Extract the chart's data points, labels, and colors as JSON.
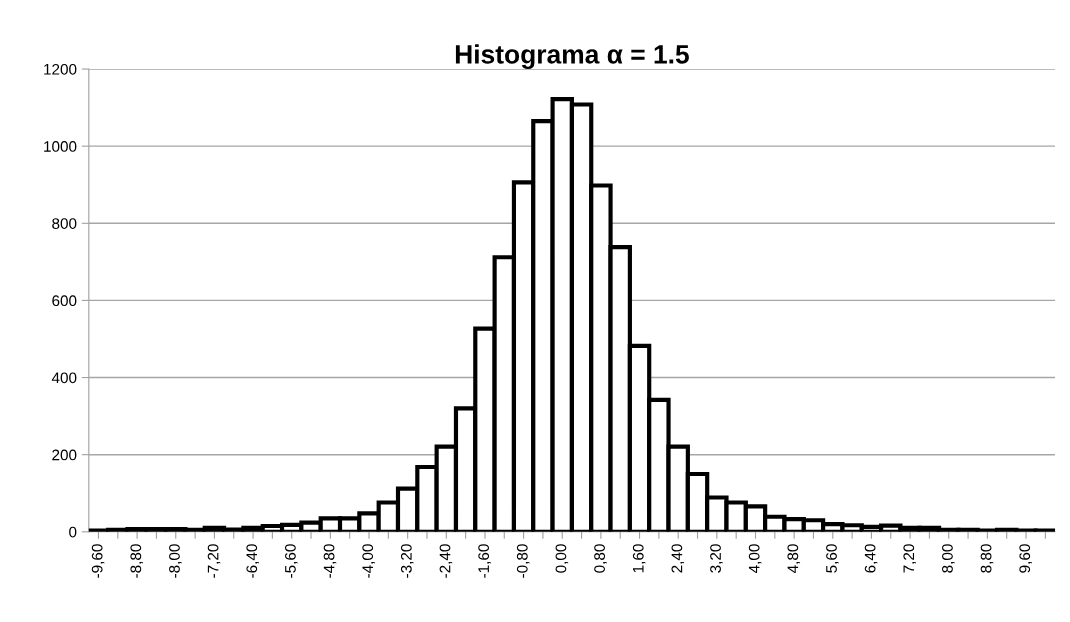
{
  "chart_data": {
    "type": "bar",
    "title": "Histograma α = 1.5",
    "categories": [
      "-9,60",
      null,
      "-8,80",
      null,
      "-8,00",
      null,
      "-7,20",
      null,
      "-6,40",
      null,
      "-5,60",
      null,
      "-4,80",
      null,
      "-4,00",
      null,
      "-3,20",
      null,
      "-2,40",
      null,
      "-1,60",
      null,
      "-0,80",
      null,
      "0,00",
      null,
      "0,80",
      null,
      "1,60",
      null,
      "2,40",
      null,
      "3,20",
      null,
      "4,00",
      null,
      "4,80",
      null,
      "5,60",
      null,
      "6,40",
      null,
      "7,20",
      null,
      "8,00",
      null,
      "8,80",
      null,
      "9,60",
      null
    ],
    "values": [
      3,
      5,
      7,
      7,
      7,
      5,
      10,
      6,
      10,
      15,
      18,
      24,
      35,
      35,
      48,
      76,
      112,
      168,
      221,
      320,
      527,
      712,
      906,
      1065,
      1122,
      1108,
      898,
      738,
      482,
      342,
      221,
      150,
      89,
      76,
      66,
      39,
      33,
      30,
      20,
      17,
      13,
      16,
      10,
      10,
      5,
      5,
      3,
      5,
      3,
      3
    ],
    "color": "#ffffff",
    "ylim": [
      0,
      1200
    ],
    "yticks": [
      0,
      200,
      400,
      600,
      800,
      1000,
      1200
    ],
    "grid": "y"
  }
}
